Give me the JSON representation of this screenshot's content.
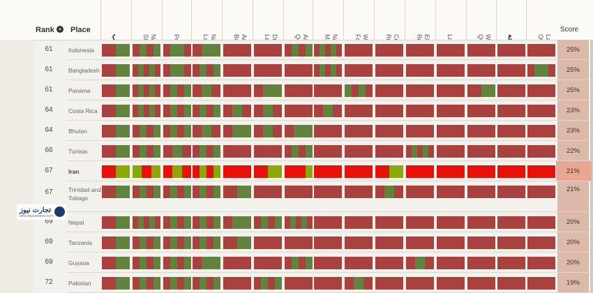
{
  "header": {
    "rank_label": "Rank",
    "place_label": "Place",
    "score_label": "Score",
    "columns": [
      {
        "label": "جه مصوب",
        "fa": true
      },
      {
        "label": "National\nStatistics",
        "fa": false
      },
      {
        "label": "Procurement",
        "fa": false
      },
      {
        "label": "National\nLaws",
        "fa": false
      },
      {
        "label": "Administrative\nBoundaries",
        "fa": false
      },
      {
        "label": "Draft\nLegislation",
        "fa": false
      },
      {
        "label": "Air\nQuality",
        "fa": false
      },
      {
        "label": "National\nMaps",
        "fa": false
      },
      {
        "label": "Weather\nForecast",
        "fa": false
      },
      {
        "label": "Company\nRegister",
        "fa": false
      },
      {
        "label": "Election\nResults",
        "fa": false
      },
      {
        "label": "Locations",
        "fa": false
      },
      {
        "label": "Water\nQuality",
        "fa": false
      },
      {
        "label": "عملکرد بودجه",
        "fa": true
      },
      {
        "label": "Land\nOwnership",
        "fa": false
      }
    ]
  },
  "colors": {
    "red": "#a9413e",
    "green": "#61833d",
    "bright_red": "#e8100b",
    "bright_green": "#8aa80a"
  },
  "rows": [
    {
      "rank": "61",
      "place": "Indonesia",
      "score": "25%",
      "cells": [
        "RG",
        "RGRG",
        "RGGR",
        "RGG",
        "R",
        "R",
        "RGRG",
        "RGRGR",
        "R",
        "R",
        "R",
        "R",
        "R",
        "R",
        "R"
      ]
    },
    {
      "rank": "61",
      "place": "Bangladesh",
      "score": "25%",
      "cells": [
        "RG",
        "RGRGR",
        "RGGR",
        "RGRG",
        "R",
        "R",
        "R",
        "RGRGR",
        "R",
        "R",
        "R",
        "R",
        "R",
        "R",
        "RGGR"
      ]
    },
    {
      "rank": "61",
      "place": "Panama",
      "score": "25%",
      "cells": [
        "RG",
        "RGRGR",
        "RGRG",
        "RGR",
        "R",
        "RGG",
        "R",
        "R",
        "GRGR",
        "R",
        "R",
        "R",
        "RG",
        "R",
        "R"
      ]
    },
    {
      "rank": "64",
      "place": "Costa Rica",
      "score": "23%",
      "cells": [
        "RG",
        "RGRGR",
        "RGRG",
        "RGRG",
        "RGR",
        "RGR",
        "R",
        "RGR",
        "R",
        "R",
        "R",
        "R",
        "R",
        "R",
        "R"
      ]
    },
    {
      "rank": "64",
      "place": "Bhutan",
      "score": "23%",
      "cells": [
        "RG",
        "RGRG",
        "RGRG",
        "RGR",
        "RGG",
        "RGR",
        "RGG",
        "R",
        "R",
        "R",
        "R",
        "R",
        "R",
        "R",
        "R"
      ]
    },
    {
      "rank": "66",
      "place": "Tunisia",
      "score": "22%",
      "cells": [
        "RG",
        "RGRG",
        "RGR",
        "RGRG",
        "R",
        "R",
        "RGRG",
        "R",
        "R",
        "R",
        "RGRGR",
        "R",
        "R",
        "R",
        "R"
      ]
    },
    {
      "rank": "67",
      "place": "Iran",
      "score": "21%",
      "iran": true,
      "cells": [
        "RG",
        "GRG",
        "RGR",
        "RGRG",
        "R",
        "RG",
        "RRRG",
        "R",
        "R",
        "RG",
        "R",
        "R",
        "R",
        "R",
        "R"
      ]
    },
    {
      "rank": "67",
      "place": "Trinidad and Tobago",
      "score": "21%",
      "tall": true,
      "cells": [
        "RG",
        "RGRG",
        "RGRG",
        "RGRG",
        "RG",
        "R",
        "R",
        "R",
        "R",
        "RGR",
        "R",
        "R",
        "R",
        "R",
        "R"
      ]
    },
    {
      "rank": "69",
      "place": "Nepal",
      "score": "20%",
      "cells": [
        "RG",
        "RGRGR",
        "RGRG",
        "RGRG",
        "RGG",
        "RGRG",
        "RGRGR",
        "R",
        "R",
        "R",
        "R",
        "R",
        "R",
        "R",
        "R"
      ]
    },
    {
      "rank": "69",
      "place": "Tanzania",
      "score": "20%",
      "cells": [
        "RG",
        "RGRG",
        "RGRG",
        "RGRG",
        "RG",
        "R",
        "R",
        "R",
        "R",
        "R",
        "R",
        "R",
        "R",
        "R",
        "R"
      ]
    },
    {
      "rank": "69",
      "place": "Guyana",
      "score": "20%",
      "cells": [
        "RG",
        "RGRG",
        "RGRG",
        "RGG",
        "R",
        "R",
        "RGRG",
        "R",
        "R",
        "R",
        "RGR",
        "R",
        "R",
        "R",
        "R"
      ]
    },
    {
      "rank": "72",
      "place": "Pakistan",
      "score": "19%",
      "cells": [
        "RG",
        "RGRG",
        "RGRG",
        "RGRG",
        "R",
        "RGRG",
        "R",
        "R",
        "RGR",
        "R",
        "R",
        "R",
        "R",
        "R",
        "R"
      ]
    }
  ],
  "logo": {
    "text": "تجارت نیوز",
    "sub": "www.tejaratnews.com"
  }
}
